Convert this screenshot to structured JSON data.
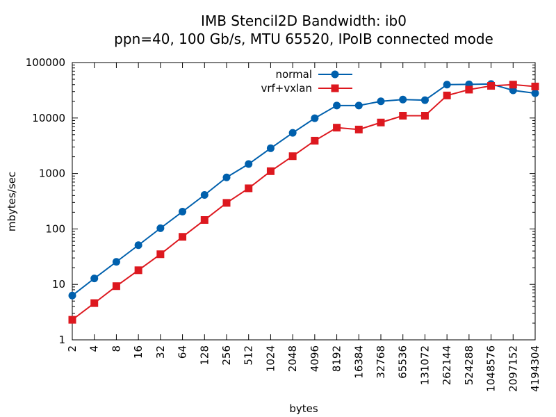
{
  "chart_data": {
    "type": "line",
    "title": "IMB Stencil2D Bandwidth: ib0",
    "subtitle": "ppn=40, 100 Gb/s, MTU 65520, IPoIB connected mode",
    "xlabel": "bytes",
    "ylabel": "mbytes/sec",
    "x_scale": "log2",
    "y_scale": "log10",
    "xlim": [
      2,
      4194304
    ],
    "ylim": [
      1,
      100000
    ],
    "x_tick_labels": [
      "2",
      "4",
      "8",
      "16",
      "32",
      "64",
      "128",
      "256",
      "512",
      "1024",
      "2048",
      "4096",
      "8192",
      "16384",
      "32768",
      "65536",
      "131072",
      "262144",
      "524288",
      "1048576",
      "2097152",
      "4194304"
    ],
    "y_tick_labels": [
      "1",
      "10",
      "100",
      "1000",
      "10000",
      "100000"
    ],
    "grid": false,
    "legend_position": "top-center",
    "x": [
      2,
      4,
      8,
      16,
      32,
      64,
      128,
      256,
      512,
      1024,
      2048,
      4096,
      8192,
      16384,
      32768,
      65536,
      131072,
      262144,
      524288,
      1048576,
      2097152,
      4194304
    ],
    "series": [
      {
        "name": "normal",
        "color": "#0060ad",
        "marker": "circle",
        "values": [
          6.3,
          12.8,
          25.5,
          51,
          103,
          205,
          410,
          850,
          1480,
          2850,
          5400,
          9900,
          16800,
          16800,
          20000,
          21500,
          21000,
          40000,
          40500,
          41000,
          31500,
          28000
        ]
      },
      {
        "name": "vrf+vxlan",
        "color": "#dd181f",
        "marker": "square",
        "values": [
          2.3,
          4.6,
          9.3,
          18,
          35,
          72,
          145,
          295,
          540,
          1100,
          2050,
          3900,
          6700,
          6200,
          8300,
          11000,
          11000,
          25500,
          32500,
          38000,
          40000,
          37000
        ]
      }
    ]
  }
}
